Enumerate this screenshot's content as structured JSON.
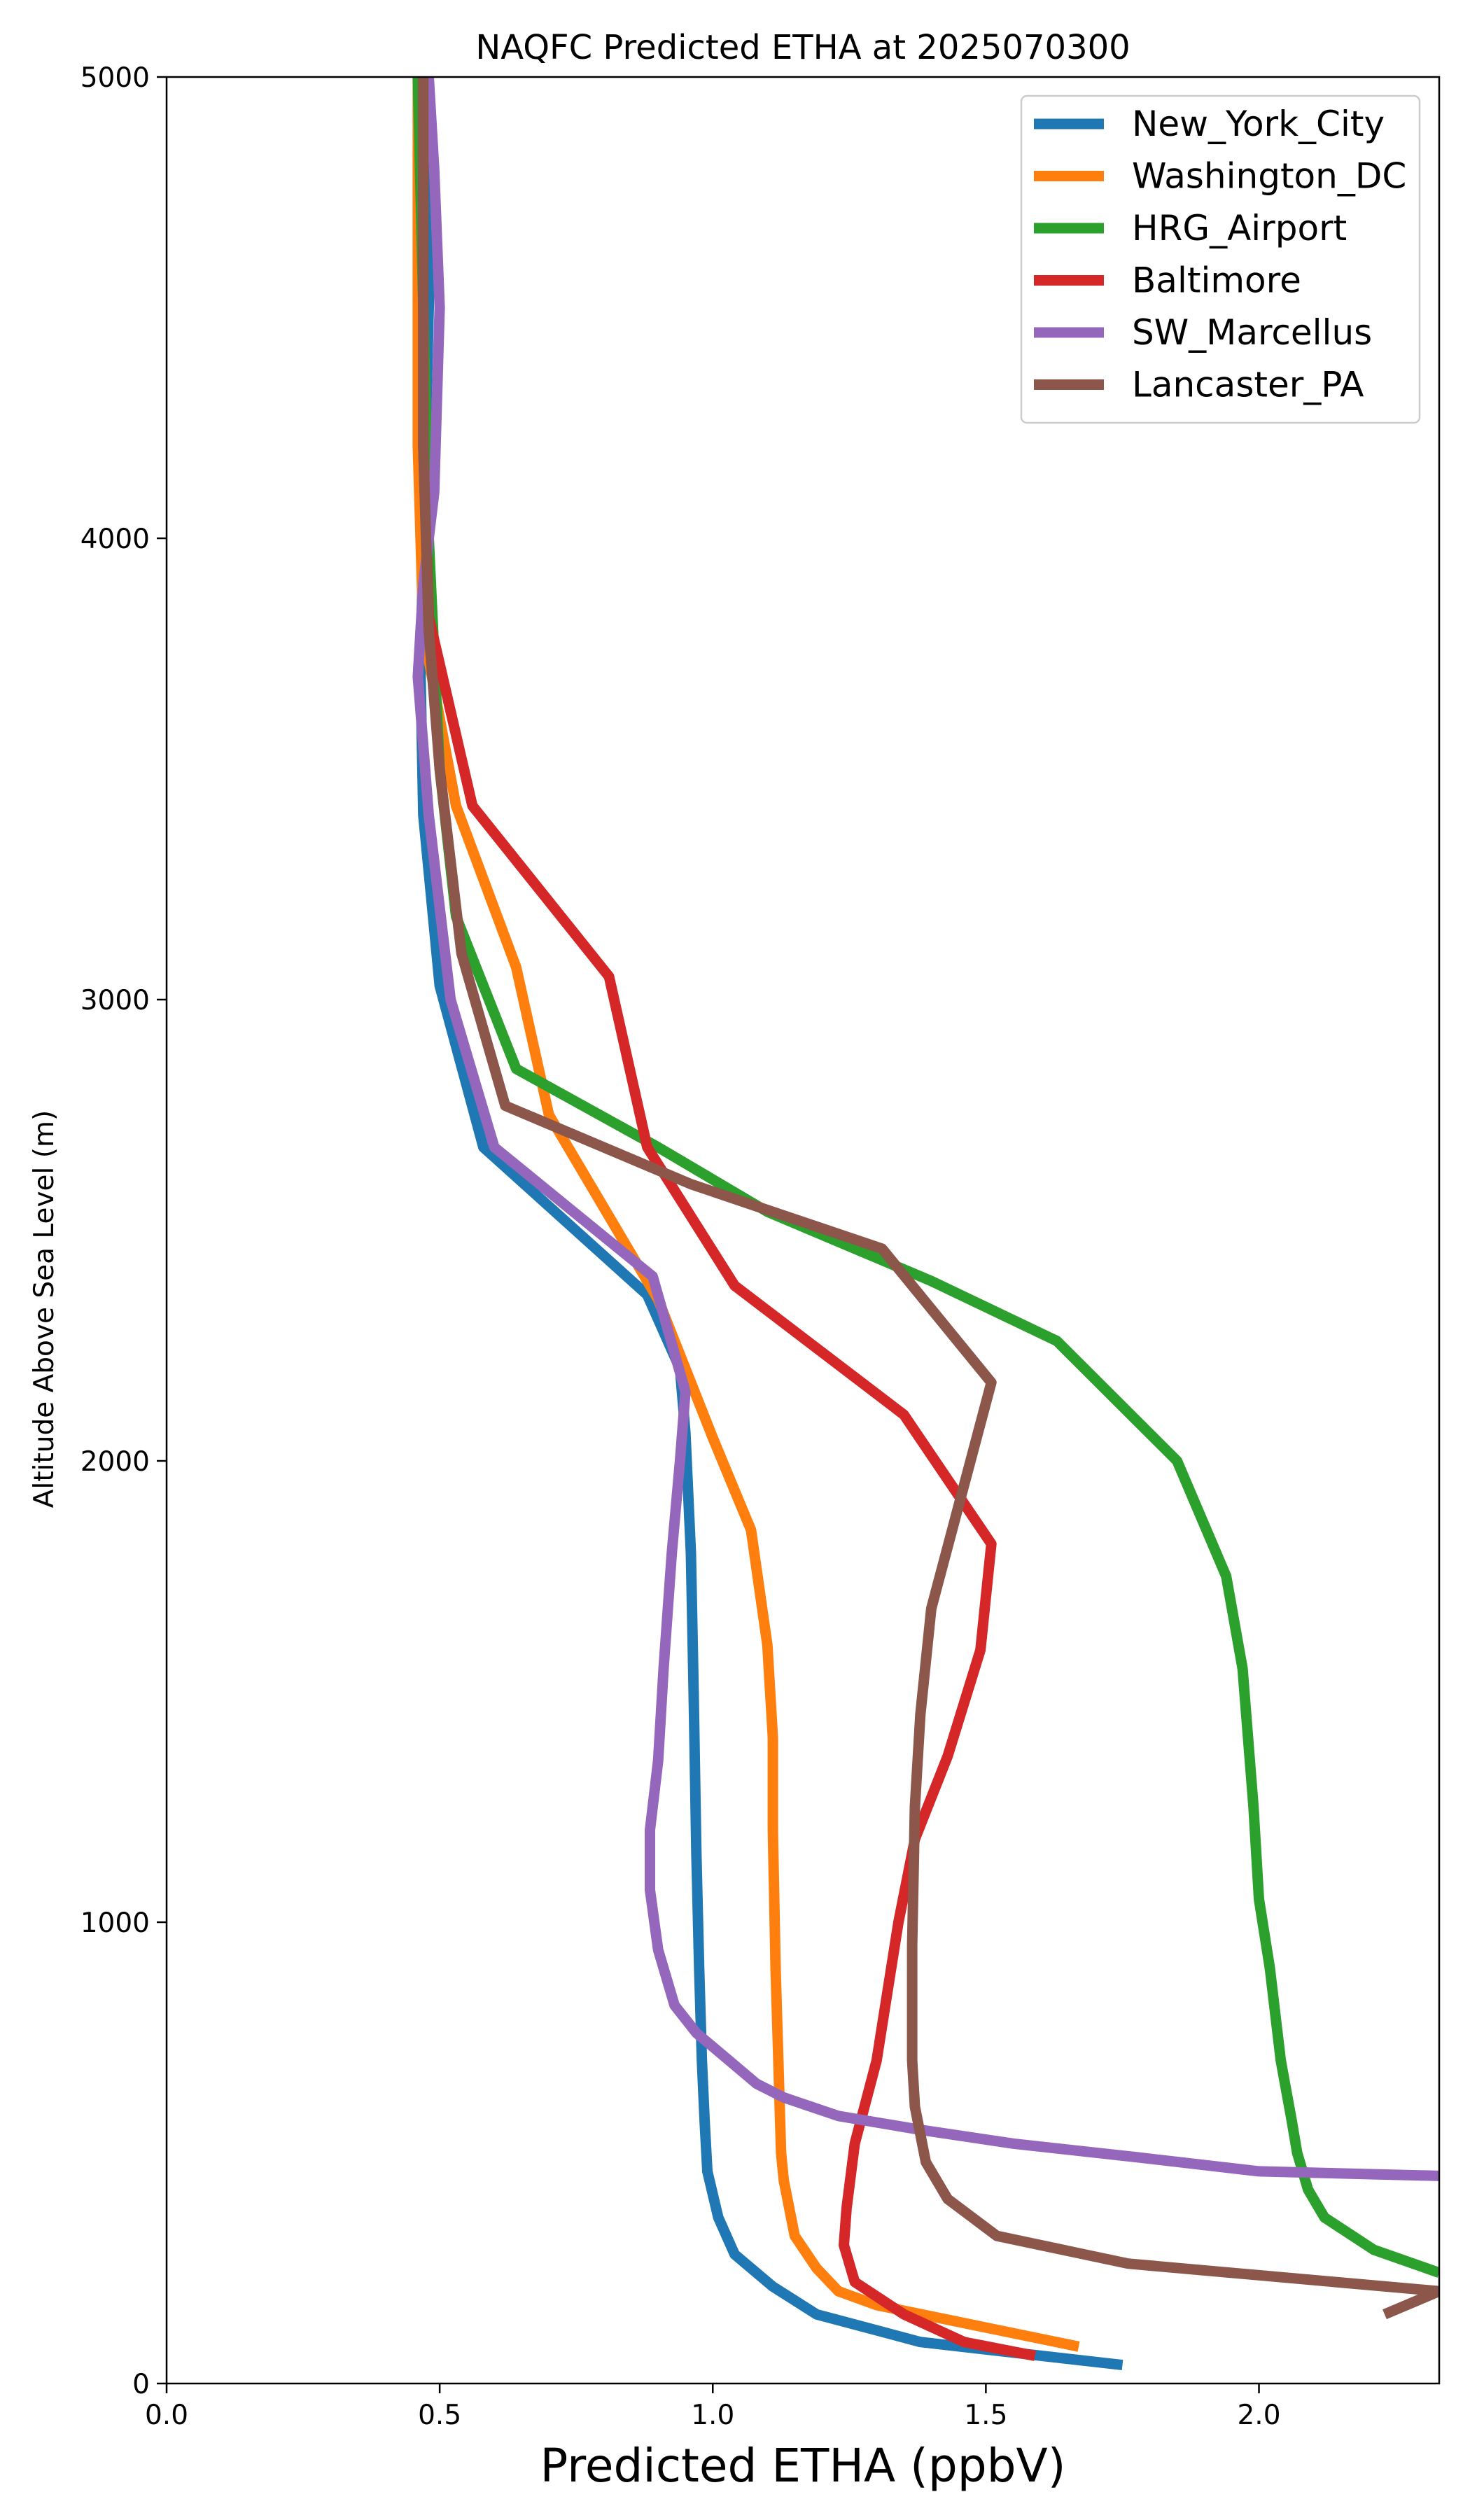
{
  "chart_data": {
    "type": "line",
    "title": "NAQFC Predicted ETHA at 2025070300",
    "xlabel": "Predicted ETHA (ppbV)",
    "ylabel": "Altitude Above Sea Level (m)",
    "xlim": [
      0.0,
      2.33
    ],
    "ylim": [
      0,
      5000
    ],
    "xticks": [
      0.0,
      0.5,
      1.0,
      1.5,
      2.0
    ],
    "xtick_labels": [
      "0.0",
      "0.5",
      "1.0",
      "1.5",
      "2.0"
    ],
    "yticks": [
      0,
      1000,
      2000,
      3000,
      4000,
      5000
    ],
    "ytick_labels": [
      "0",
      "1000",
      "2000",
      "3000",
      "4000",
      "5000"
    ],
    "grid": false,
    "legend_position": "top-right",
    "series": [
      {
        "name": "New_York_City",
        "color": "#1f77b4",
        "points": [
          [
            1.75,
            40
          ],
          [
            1.38,
            90
          ],
          [
            1.19,
            150
          ],
          [
            1.11,
            210
          ],
          [
            1.04,
            280
          ],
          [
            1.01,
            360
          ],
          [
            0.99,
            460
          ],
          [
            0.985,
            570
          ],
          [
            0.98,
            700
          ],
          [
            0.975,
            900
          ],
          [
            0.97,
            1150
          ],
          [
            0.965,
            1500
          ],
          [
            0.96,
            1800
          ],
          [
            0.95,
            2060
          ],
          [
            0.94,
            2200
          ],
          [
            0.88,
            2360
          ],
          [
            0.58,
            2680
          ],
          [
            0.5,
            3030
          ],
          [
            0.47,
            3400
          ],
          [
            0.465,
            3700
          ],
          [
            0.47,
            4000
          ],
          [
            0.48,
            4500
          ],
          [
            0.48,
            5000
          ]
        ]
      },
      {
        "name": "Washington_DC",
        "color": "#ff7f0e",
        "points": [
          [
            1.67,
            80
          ],
          [
            1.3,
            170
          ],
          [
            1.23,
            200
          ],
          [
            1.19,
            250
          ],
          [
            1.15,
            320
          ],
          [
            1.14,
            380
          ],
          [
            1.13,
            440
          ],
          [
            1.125,
            500
          ],
          [
            1.12,
            700
          ],
          [
            1.115,
            900
          ],
          [
            1.11,
            1200
          ],
          [
            1.11,
            1400
          ],
          [
            1.1,
            1600
          ],
          [
            1.07,
            1850
          ],
          [
            1.0,
            2050
          ],
          [
            0.9,
            2350
          ],
          [
            0.8,
            2550
          ],
          [
            0.7,
            2750
          ],
          [
            0.64,
            3070
          ],
          [
            0.53,
            3420
          ],
          [
            0.47,
            3800
          ],
          [
            0.46,
            4200
          ],
          [
            0.46,
            4600
          ],
          [
            0.46,
            5000
          ]
        ]
      },
      {
        "name": "HRG_Airport",
        "color": "#2ca02c",
        "points": [
          [
            2.33,
            240
          ],
          [
            2.21,
            290
          ],
          [
            2.12,
            360
          ],
          [
            2.09,
            420
          ],
          [
            2.07,
            500
          ],
          [
            2.06,
            570
          ],
          [
            2.04,
            700
          ],
          [
            2.02,
            900
          ],
          [
            2.0,
            1050
          ],
          [
            1.99,
            1250
          ],
          [
            1.97,
            1550
          ],
          [
            1.94,
            1750
          ],
          [
            1.85,
            2000
          ],
          [
            1.63,
            2260
          ],
          [
            1.4,
            2390
          ],
          [
            1.1,
            2540
          ],
          [
            0.9,
            2680
          ],
          [
            0.64,
            2850
          ],
          [
            0.53,
            3180
          ],
          [
            0.5,
            3500
          ],
          [
            0.48,
            4000
          ],
          [
            0.47,
            4500
          ],
          [
            0.46,
            5000
          ]
        ]
      },
      {
        "name": "Baltimore",
        "color": "#d62728",
        "points": [
          [
            1.59,
            60
          ],
          [
            1.46,
            90
          ],
          [
            1.35,
            150
          ],
          [
            1.26,
            220
          ],
          [
            1.24,
            300
          ],
          [
            1.245,
            380
          ],
          [
            1.26,
            520
          ],
          [
            1.3,
            700
          ],
          [
            1.32,
            850
          ],
          [
            1.34,
            1000
          ],
          [
            1.37,
            1180
          ],
          [
            1.43,
            1360
          ],
          [
            1.49,
            1590
          ],
          [
            1.51,
            1820
          ],
          [
            1.35,
            2100
          ],
          [
            1.04,
            2380
          ],
          [
            0.88,
            2680
          ],
          [
            0.81,
            3050
          ],
          [
            0.56,
            3420
          ],
          [
            0.48,
            3830
          ],
          [
            0.47,
            4200
          ],
          [
            0.47,
            4600
          ],
          [
            0.47,
            5000
          ]
        ]
      },
      {
        "name": "SW_Marcellus",
        "color": "#9467bd",
        "points": [
          [
            2.33,
            450
          ],
          [
            2.0,
            460
          ],
          [
            1.78,
            490
          ],
          [
            1.55,
            520
          ],
          [
            1.38,
            550
          ],
          [
            1.23,
            580
          ],
          [
            1.13,
            620
          ],
          [
            1.08,
            650
          ],
          [
            1.02,
            710
          ],
          [
            0.97,
            760
          ],
          [
            0.93,
            820
          ],
          [
            0.9,
            940
          ],
          [
            0.885,
            1070
          ],
          [
            0.885,
            1200
          ],
          [
            0.9,
            1350
          ],
          [
            0.91,
            1550
          ],
          [
            0.925,
            1800
          ],
          [
            0.94,
            2000
          ],
          [
            0.95,
            2150
          ],
          [
            0.89,
            2400
          ],
          [
            0.6,
            2680
          ],
          [
            0.52,
            3000
          ],
          [
            0.48,
            3400
          ],
          [
            0.46,
            3700
          ],
          [
            0.47,
            3900
          ],
          [
            0.49,
            4100
          ],
          [
            0.5,
            4500
          ],
          [
            0.49,
            4800
          ],
          [
            0.48,
            5000
          ]
        ]
      },
      {
        "name": "Lancaster_PA",
        "color": "#8c564b",
        "points": [
          [
            2.23,
            150
          ],
          [
            2.33,
            200
          ],
          [
            1.76,
            260
          ],
          [
            1.52,
            320
          ],
          [
            1.43,
            400
          ],
          [
            1.39,
            480
          ],
          [
            1.37,
            600
          ],
          [
            1.365,
            700
          ],
          [
            1.365,
            950
          ],
          [
            1.37,
            1250
          ],
          [
            1.38,
            1450
          ],
          [
            1.4,
            1680
          ],
          [
            1.51,
            2170
          ],
          [
            1.31,
            2460
          ],
          [
            0.96,
            2600
          ],
          [
            0.62,
            2770
          ],
          [
            0.54,
            3100
          ],
          [
            0.5,
            3500
          ],
          [
            0.48,
            3800
          ],
          [
            0.47,
            4200
          ],
          [
            0.47,
            4600
          ],
          [
            0.47,
            5000
          ]
        ]
      }
    ]
  }
}
